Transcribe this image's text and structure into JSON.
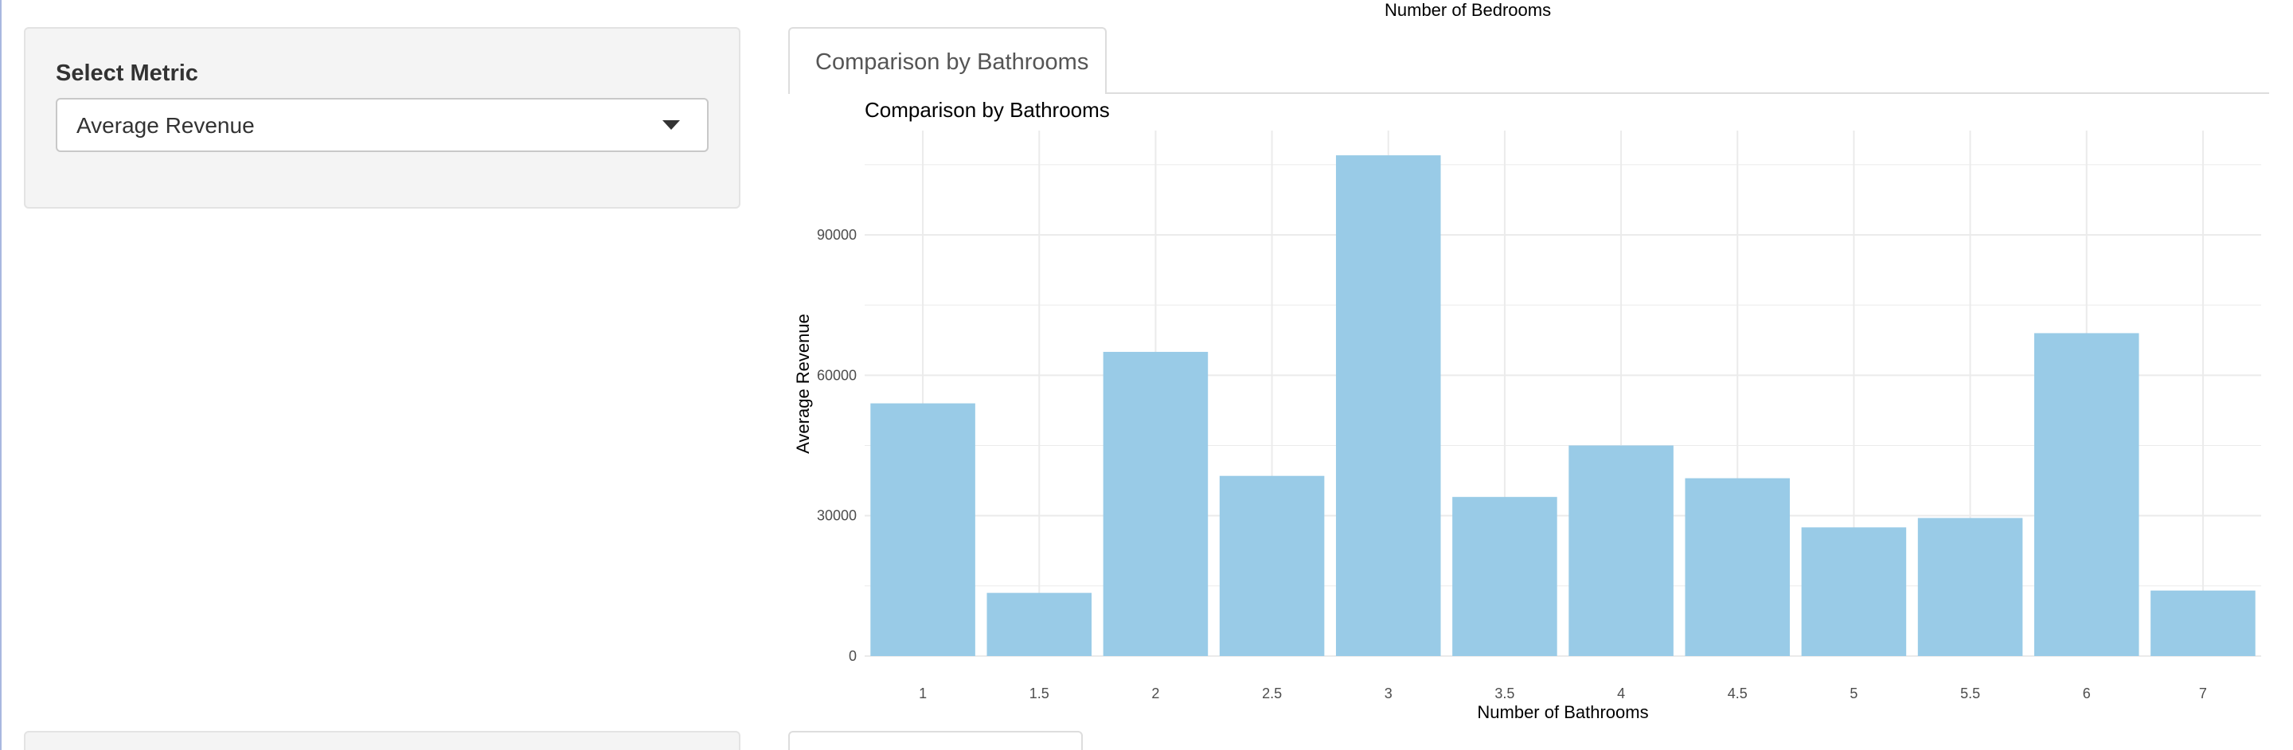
{
  "top_caption": "Number of Bedrooms",
  "sidebar": {
    "metric_label": "Select Metric",
    "metric_value": "Average Revenue"
  },
  "tabs": [
    {
      "label": "Comparison by Bathrooms",
      "active": true
    }
  ],
  "colors": {
    "bar": "#99cbe7",
    "grid": "#ebebeb",
    "tab_border": "#dddddd",
    "well_bg": "#f4f4f4"
  },
  "chart_data": {
    "type": "bar",
    "title": "Comparison by Bathrooms",
    "xlabel": "Number of Bathrooms",
    "ylabel": "Average Revenue",
    "categories": [
      "1",
      "1.5",
      "2",
      "2.5",
      "3",
      "3.5",
      "4",
      "4.5",
      "5",
      "5.5",
      "6",
      "7"
    ],
    "values": [
      54000,
      13500,
      65000,
      38500,
      107000,
      34000,
      45000,
      38000,
      27500,
      29500,
      69000,
      14000
    ],
    "yticks": [
      0,
      30000,
      60000,
      90000
    ],
    "ylim": [
      0,
      112000
    ],
    "grid": true
  }
}
